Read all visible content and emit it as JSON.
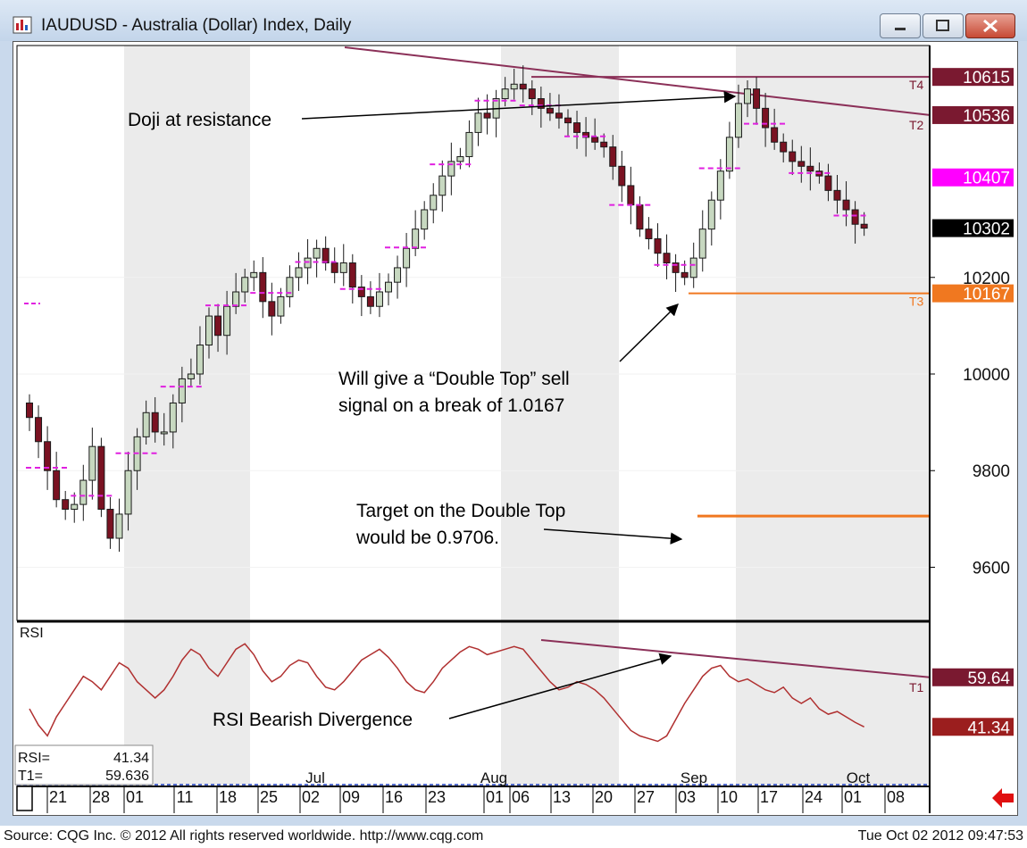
{
  "window": {
    "title": "IAUDUSD - Australia (Dollar) Index, Daily",
    "minimize_label": "–",
    "maximize_label": "□",
    "close_label": "✕"
  },
  "footer": {
    "source": "Source: CQG Inc. © 2012 All rights reserved worldwide. http://www.cqg.com",
    "timestamp": "Tue Oct 02 2012 09:47:53"
  },
  "colors": {
    "bull_candle": "#c7d8c0",
    "bear_candle": "#7a1222",
    "trendline": "#8b3058",
    "support": "#f07820",
    "pivot": "#e020e0",
    "shade": "#ebebeb",
    "rsi_line": "#b03030"
  },
  "chart_data": [
    {
      "type": "candlestick",
      "title": "IAUDUSD - Australia (Dollar) Index, Daily",
      "ylim": [
        9490,
        10680
      ],
      "y_ticks": [
        9600,
        9800,
        10000,
        10200
      ],
      "x_tick_labels": [
        "21",
        "28",
        "01",
        "11",
        "18",
        "25",
        "02",
        "09",
        "16",
        "23",
        "01",
        "06",
        "13",
        "20",
        "27",
        "03",
        "10",
        "17",
        "24",
        "01",
        "08"
      ],
      "month_labels": [
        "Jul",
        "Aug",
        "Sep",
        "Oct"
      ],
      "series": [
        {
          "name": "close",
          "values": [
            9910,
            9860,
            9800,
            9740,
            9720,
            9730,
            9780,
            9850,
            9720,
            9660,
            9710,
            9800,
            9870,
            9920,
            9880,
            9880,
            9940,
            9990,
            10000,
            10060,
            10120,
            10080,
            10140,
            10170,
            10200,
            10210,
            10150,
            10120,
            10160,
            10200,
            10220,
            10240,
            10260,
            10230,
            10210,
            10230,
            10180,
            10160,
            10140,
            10170,
            10190,
            10220,
            10260,
            10300,
            10340,
            10370,
            10410,
            10440,
            10450,
            10500,
            10540,
            10530,
            10570,
            10590,
            10600,
            10590,
            10570,
            10550,
            10540,
            10530,
            10520,
            10500,
            10490,
            10480,
            10470,
            10430,
            10390,
            10350,
            10300,
            10280,
            10250,
            10230,
            10210,
            10200,
            10240,
            10300,
            10360,
            10420,
            10490,
            10560,
            10590,
            10550,
            10510,
            10480,
            10460,
            10440,
            10430,
            10420,
            10410,
            10380,
            10360,
            10340,
            10310,
            10302
          ]
        }
      ],
      "horizontal_levels": [
        {
          "label": "T4",
          "value": 10615
        },
        {
          "label": "T3",
          "value": 10167
        },
        {
          "label": "target",
          "value": 9706
        }
      ],
      "trendlines": [
        {
          "label": "T2",
          "value_right": 10536
        }
      ],
      "price_tags": [
        {
          "label": "10615",
          "value": 10615,
          "color": "#7a1930"
        },
        {
          "label": "10536",
          "value": 10536,
          "color": "#7a1930"
        },
        {
          "label": "10407",
          "value": 10407,
          "color": "#ff00ff"
        },
        {
          "label": "10302",
          "value": 10302,
          "color": "#000000"
        },
        {
          "label": "10167",
          "value": 10167,
          "color": "#f07820"
        }
      ],
      "line_labels": [
        "T4",
        "T2",
        "T3"
      ],
      "annotations": [
        "Doji at resistance",
        "Will give a “Double Top” sell",
        "signal on a break of 1.0167",
        "Target on the Double Top",
        "would be 0.9706."
      ]
    },
    {
      "type": "line",
      "title": "RSI",
      "ylim": [
        20,
        80
      ],
      "series": [
        {
          "name": "RSI",
          "values": [
            48,
            42,
            38,
            45,
            50,
            55,
            60,
            58,
            55,
            60,
            65,
            63,
            58,
            55,
            52,
            55,
            60,
            66,
            70,
            68,
            63,
            60,
            65,
            70,
            72,
            68,
            62,
            58,
            60,
            64,
            66,
            65,
            60,
            56,
            55,
            58,
            62,
            66,
            68,
            70,
            67,
            63,
            58,
            55,
            54,
            58,
            63,
            66,
            69,
            71,
            70,
            68,
            69,
            70,
            71,
            70,
            66,
            62,
            58,
            55,
            56,
            58,
            57,
            55,
            52,
            48,
            44,
            40,
            38,
            37,
            36,
            38,
            44,
            50,
            55,
            60,
            63,
            64,
            60,
            58,
            59,
            57,
            55,
            54,
            56,
            52,
            50,
            52,
            48,
            46,
            47,
            45,
            43,
            41.34
          ]
        }
      ],
      "trendline": {
        "label": "T1",
        "value_right": 59.64
      },
      "price_tags": [
        {
          "label": "59.64",
          "value": 59.64,
          "color": "#7a1930"
        },
        {
          "label": "41.34",
          "value": 41.34,
          "color": "#9b1e1e"
        }
      ],
      "dashed_level": 20,
      "readout": {
        "rsi_label": "RSI=",
        "rsi_value": "41.34",
        "t1_label": "T1=",
        "t1_value": "59.636"
      },
      "annotations": [
        "RSI Bearish Divergence"
      ]
    }
  ]
}
